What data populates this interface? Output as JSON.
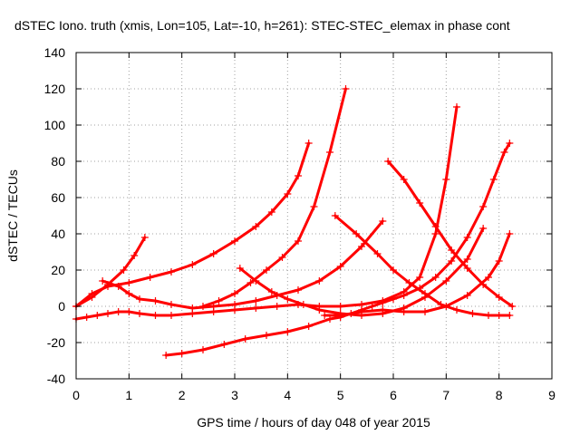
{
  "chart_data": {
    "type": "line",
    "title": "dSTEC Iono. truth (xmis, Lon=105, Lat=-10, h=261): STEC-STEC_elemax in phase cont",
    "xlabel": "GPS time / hours of day 048 of year 2015",
    "ylabel": "dSTEC  / TECUs",
    "xlim": [
      0,
      9
    ],
    "ylim": [
      -40,
      140
    ],
    "xticks": [
      0,
      1,
      2,
      3,
      4,
      5,
      6,
      7,
      8,
      9
    ],
    "yticks": [
      -40,
      -20,
      0,
      20,
      40,
      60,
      80,
      100,
      120,
      140
    ],
    "grid": true,
    "legend": "none",
    "marker": "plus",
    "color": "#ff0000",
    "series": [
      {
        "x": [
          0.0,
          0.3,
          0.6,
          0.9,
          1.1,
          1.3
        ],
        "y": [
          0,
          5,
          12,
          20,
          28,
          38
        ]
      },
      {
        "x": [
          0.0,
          0.3,
          0.6,
          1.0,
          1.4,
          1.8,
          2.2,
          2.6,
          3.0,
          3.4,
          3.7,
          4.0,
          4.2,
          4.4
        ],
        "y": [
          0,
          7,
          11,
          13,
          16,
          19,
          23,
          29,
          36,
          44,
          52,
          62,
          72,
          90
        ]
      },
      {
        "x": [
          0.5,
          0.8,
          1.0,
          1.2,
          1.5,
          1.8,
          2.2,
          2.6,
          3.0,
          3.4,
          3.8,
          4.2,
          4.6,
          5.0,
          5.4,
          5.8
        ],
        "y": [
          14,
          11,
          7,
          4,
          3,
          1,
          -1,
          0,
          1,
          3,
          6,
          9,
          14,
          22,
          33,
          47
        ]
      },
      {
        "x": [
          0.0,
          0.2,
          0.4,
          0.6,
          0.8,
          1.0,
          1.2,
          1.5,
          1.8,
          2.2,
          2.6,
          3.0,
          3.4,
          3.8,
          4.2,
          4.6,
          5.0,
          5.4,
          5.8,
          6.2,
          6.5,
          6.8,
          7.0,
          7.2
        ],
        "y": [
          -7,
          -6,
          -5,
          -4,
          -3,
          -3,
          -4,
          -5,
          -5,
          -4,
          -3,
          -2,
          -1,
          0,
          1,
          0,
          0,
          1,
          3,
          8,
          16,
          40,
          70,
          110
        ]
      },
      {
        "x": [
          1.7,
          2.0,
          2.4,
          2.8,
          3.2,
          3.6,
          4.0,
          4.4,
          4.8,
          5.0,
          5.2,
          5.4,
          5.6,
          5.8,
          6.0,
          6.2,
          6.5,
          6.8,
          7.1,
          7.4,
          7.7,
          7.9,
          8.1,
          8.2
        ],
        "y": [
          -27,
          -26,
          -24,
          -21,
          -18,
          -16,
          -14,
          -11,
          -7,
          -6,
          -4,
          -2,
          0,
          2,
          4,
          6,
          10,
          16,
          25,
          38,
          55,
          70,
          85,
          90
        ]
      },
      {
        "x": [
          2.4,
          2.7,
          3.0,
          3.3,
          3.6,
          3.9,
          4.2,
          4.5,
          4.8,
          5.1
        ],
        "y": [
          0,
          3,
          7,
          13,
          20,
          27,
          36,
          55,
          85,
          120
        ]
      },
      {
        "x": [
          3.1,
          3.4,
          3.7,
          4.0,
          4.3,
          4.6,
          5.0,
          5.4,
          5.8,
          6.2,
          6.6,
          7.0,
          7.4,
          7.7
        ],
        "y": [
          21,
          14,
          8,
          4,
          1,
          -2,
          -4,
          -5,
          -4,
          -1,
          5,
          14,
          26,
          43
        ]
      },
      {
        "x": [
          4.9,
          5.3,
          5.7,
          6.0,
          6.3,
          6.6,
          6.9,
          7.2,
          7.5,
          7.8,
          8.0,
          8.2
        ],
        "y": [
          50,
          40,
          29,
          20,
          13,
          7,
          1,
          -2,
          -4,
          -5,
          -5,
          -5
        ]
      },
      {
        "x": [
          4.7,
          5.0,
          5.4,
          5.8,
          6.2,
          6.6,
          7.0,
          7.4,
          7.8,
          8.0,
          8.2
        ],
        "y": [
          -5,
          -5,
          -3,
          -2,
          -3,
          -3,
          0,
          6,
          16,
          25,
          40
        ]
      },
      {
        "x": [
          5.9,
          6.2,
          6.5,
          6.8,
          7.1,
          7.4,
          7.7,
          8.0,
          8.25
        ],
        "y": [
          80,
          70,
          57,
          44,
          31,
          21,
          12,
          5,
          0
        ]
      }
    ]
  }
}
